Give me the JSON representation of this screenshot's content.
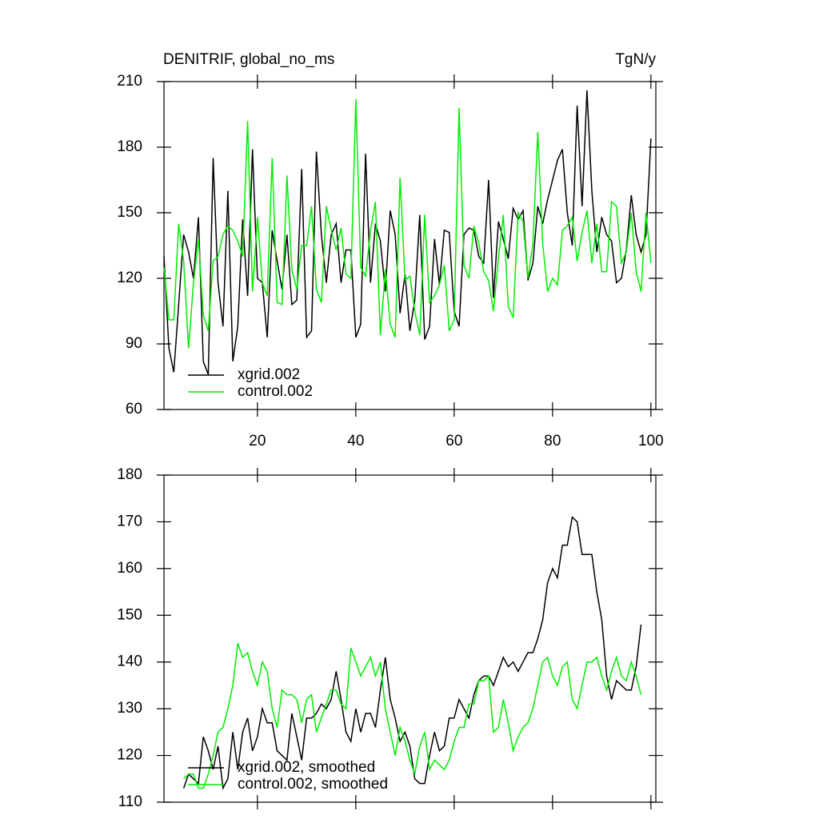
{
  "chart_data": [
    {
      "type": "line",
      "title": "DENITRIF, global_no_ms",
      "subtitle": "TgN/y",
      "x": [
        1,
        2,
        3,
        4,
        5,
        6,
        7,
        8,
        9,
        10,
        11,
        12,
        13,
        14,
        15,
        16,
        17,
        18,
        19,
        20,
        21,
        22,
        23,
        24,
        25,
        26,
        27,
        28,
        29,
        30,
        31,
        32,
        33,
        34,
        35,
        36,
        37,
        38,
        39,
        40,
        41,
        42,
        43,
        44,
        45,
        46,
        47,
        48,
        49,
        50,
        51,
        52,
        53,
        54,
        55,
        56,
        57,
        58,
        59,
        60,
        61,
        62,
        63,
        64,
        65,
        66,
        67,
        68,
        69,
        70,
        71,
        72,
        73,
        74,
        75,
        76,
        77,
        78,
        79,
        80,
        81,
        82,
        83,
        84,
        85,
        86,
        87,
        88,
        89,
        90,
        91,
        92,
        93,
        94,
        95,
        96,
        97,
        98,
        99,
        100
      ],
      "series": [
        {
          "name": "xgrid.002",
          "color": "#000000",
          "values": [
            130,
            88,
            77,
            108,
            140,
            132,
            120,
            148,
            82,
            76,
            175,
            118,
            98,
            160,
            82,
            98,
            147,
            112,
            179,
            120,
            118,
            93,
            142,
            128,
            115,
            140,
            108,
            110,
            170,
            93,
            96,
            178,
            140,
            118,
            140,
            145,
            118,
            133,
            133,
            93,
            99,
            177,
            118,
            145,
            137,
            114,
            151,
            140,
            104,
            122,
            96,
            110,
            149,
            92,
            98,
            138,
            117,
            142,
            141,
            105,
            98,
            140,
            143,
            142,
            130,
            127,
            165,
            111,
            146,
            138,
            129,
            152,
            147,
            151,
            119,
            127,
            153,
            145,
            156,
            165,
            174,
            179,
            150,
            135,
            199,
            153,
            206,
            160,
            132,
            148,
            140,
            137,
            118,
            120,
            133,
            158,
            140,
            132,
            140,
            184
          ]
        },
        {
          "name": "control.002",
          "color": "#00ee00",
          "values": [
            125,
            101,
            101,
            145,
            128,
            88,
            118,
            138,
            103,
            96,
            128,
            130,
            140,
            144,
            142,
            137,
            130,
            192,
            114,
            148,
            118,
            112,
            175,
            109,
            108,
            167,
            124,
            115,
            135,
            135,
            153,
            115,
            109,
            153,
            142,
            133,
            143,
            122,
            120,
            202,
            125,
            121,
            142,
            155,
            94,
            124,
            99,
            93,
            166,
            119,
            121,
            105,
            94,
            149,
            109,
            112,
            117,
            126,
            96,
            101,
            198,
            126,
            120,
            144,
            136,
            123,
            119,
            105,
            129,
            149,
            107,
            102,
            150,
            146,
            120,
            136,
            187,
            136,
            114,
            120,
            117,
            142,
            144,
            148,
            128,
            141,
            151,
            127,
            145,
            123,
            123,
            155,
            153,
            127,
            132,
            150,
            123,
            114,
            150,
            127
          ]
        }
      ],
      "xlim": [
        1,
        101
      ],
      "ylim": [
        60,
        210
      ],
      "xticks": [
        20,
        40,
        60,
        80,
        100
      ],
      "yticks": [
        60,
        90,
        120,
        150,
        180,
        210
      ],
      "legend": "lower left"
    },
    {
      "type": "line",
      "x": [
        5,
        6,
        7,
        8,
        9,
        10,
        11,
        12,
        13,
        14,
        15,
        16,
        17,
        18,
        19,
        20,
        21,
        22,
        23,
        24,
        25,
        26,
        27,
        28,
        29,
        30,
        31,
        32,
        33,
        34,
        35,
        36,
        37,
        38,
        39,
        40,
        41,
        42,
        43,
        44,
        45,
        46,
        47,
        48,
        49,
        50,
        51,
        52,
        53,
        54,
        55,
        56,
        57,
        58,
        59,
        60,
        61,
        62,
        63,
        64,
        65,
        66,
        67,
        68,
        69,
        70,
        71,
        72,
        73,
        74,
        75,
        76,
        77,
        78,
        79,
        80,
        81,
        82,
        83,
        84,
        85,
        86,
        87,
        88,
        89,
        90,
        91,
        92,
        93,
        94,
        95,
        96,
        97,
        98
      ],
      "series": [
        {
          "name": "xgrid.002, smoothed",
          "color": "#000000",
          "values": [
            113,
            116,
            115,
            114,
            124,
            121,
            117,
            122,
            113,
            115,
            125,
            117,
            125,
            128,
            121,
            124,
            130,
            127,
            127,
            121,
            120,
            119,
            129,
            124,
            119,
            128,
            128,
            129,
            131,
            130,
            132,
            138,
            132,
            125,
            123,
            130,
            125,
            129,
            129,
            126,
            134,
            141,
            132,
            128,
            123,
            125,
            122,
            115,
            114,
            114,
            120,
            125,
            121,
            122,
            128,
            128,
            132,
            130,
            128,
            133,
            136,
            137,
            137,
            135,
            138,
            141,
            139,
            140,
            138,
            140,
            142,
            142,
            145,
            149,
            157,
            160,
            158,
            165,
            165,
            171,
            170,
            163,
            163,
            163,
            155,
            149,
            137,
            132,
            136,
            135,
            134,
            134,
            139,
            148
          ]
        },
        {
          "name": "control.002, smoothed",
          "color": "#00ee00",
          "values": [
            115,
            116,
            116,
            113,
            113,
            116,
            120,
            125,
            126,
            130,
            135,
            144,
            141,
            142,
            138,
            135,
            140,
            138,
            130,
            126,
            134,
            133,
            133,
            132,
            127,
            132,
            133,
            125,
            128,
            131,
            134,
            134,
            131,
            130,
            143,
            140,
            137,
            139,
            141,
            137,
            140,
            130,
            125,
            120,
            126,
            123,
            119,
            116,
            122,
            125,
            117,
            119,
            118,
            117,
            119,
            123,
            126,
            126,
            131,
            131,
            136,
            136,
            137,
            125,
            126,
            132,
            127,
            121,
            124,
            126,
            127,
            130,
            135,
            140,
            141,
            137,
            135,
            139,
            140,
            132,
            130,
            135,
            140,
            140,
            141,
            137,
            134,
            138,
            141,
            137,
            136,
            140,
            137,
            133
          ]
        }
      ],
      "xlim": [
        1,
        101
      ],
      "ylim": [
        110,
        180
      ],
      "yticks": [
        110,
        120,
        130,
        140,
        150,
        160,
        170,
        180
      ],
      "legend": "lower left"
    }
  ]
}
